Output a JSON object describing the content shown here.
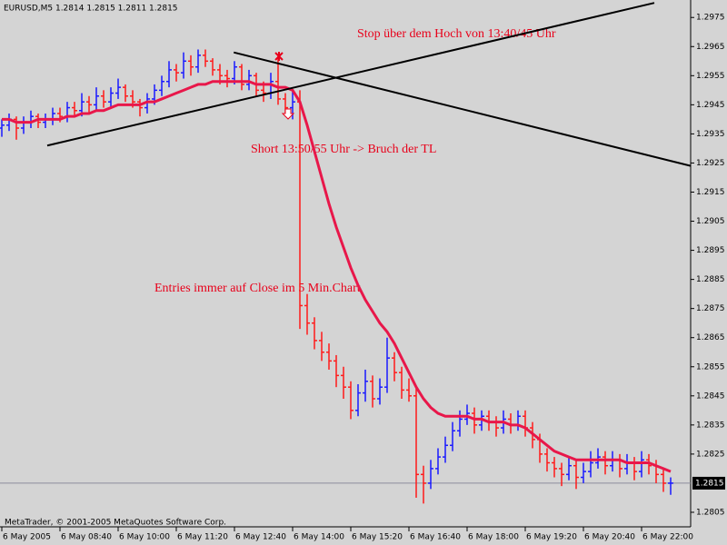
{
  "chart_data": {
    "type": "ohlc",
    "title": "EURUSD,M5  1.2814 1.2815 1.2811 1.2815",
    "footer": "MetaTrader, © 2001-2005 MetaQuotes Software Corp.",
    "annotations": [
      "Stop über dem Hoch von 13:40/45 Uhr",
      "Short 13:50/55 Uhr -> Bruch der TL",
      "Entries immer auf Close im 5 Min.Chart"
    ],
    "categories": [
      "6 May 2005",
      null,
      null,
      null,
      null,
      null,
      null,
      null,
      "6 May 08:40",
      null,
      null,
      null,
      null,
      null,
      null,
      null,
      "6 May 10:00",
      null,
      null,
      null,
      null,
      null,
      null,
      null,
      "6 May 11:20",
      null,
      null,
      null,
      null,
      null,
      null,
      null,
      "6 May 12:40",
      null,
      null,
      null,
      null,
      null,
      null,
      null,
      "6 May 14:00",
      null,
      null,
      null,
      null,
      null,
      null,
      null,
      "6 May 15:20",
      null,
      null,
      null,
      null,
      null,
      null,
      null,
      "6 May 16:40",
      null,
      null,
      null,
      null,
      null,
      null,
      null,
      "6 May 18:00",
      null,
      null,
      null,
      null,
      null,
      null,
      null,
      "6 May 19:20",
      null,
      null,
      null,
      null,
      null,
      null,
      null,
      "6 May 20:40",
      null,
      null,
      null,
      null,
      null,
      null,
      null,
      "6 May 22:00",
      null,
      null,
      null,
      null
    ],
    "ohlc": [
      [
        1.2937,
        1.294,
        1.2934,
        1.2938
      ],
      [
        1.2938,
        1.2942,
        1.2936,
        1.294
      ],
      [
        1.294,
        1.2941,
        1.2933,
        1.2937
      ],
      [
        1.2937,
        1.2941,
        1.2935,
        1.2939
      ],
      [
        1.2939,
        1.2943,
        1.2937,
        1.2941
      ],
      [
        1.2941,
        1.2942,
        1.2937,
        1.2939
      ],
      [
        1.2939,
        1.2942,
        1.2937,
        1.294
      ],
      [
        1.294,
        1.2944,
        1.2938,
        1.2942
      ],
      [
        1.2942,
        1.2944,
        1.2939,
        1.2941
      ],
      [
        1.2941,
        1.2946,
        1.2939,
        1.2944
      ],
      [
        1.2944,
        1.2946,
        1.2941,
        1.2943
      ],
      [
        1.2943,
        1.2949,
        1.2941,
        1.2946
      ],
      [
        1.2946,
        1.2948,
        1.2942,
        1.2945
      ],
      [
        1.2945,
        1.2951,
        1.2943,
        1.2948
      ],
      [
        1.2948,
        1.295,
        1.2944,
        1.2946
      ],
      [
        1.2946,
        1.2951,
        1.2944,
        1.2949
      ],
      [
        1.2949,
        1.2954,
        1.2947,
        1.2951
      ],
      [
        1.2951,
        1.2952,
        1.2946,
        1.2948
      ],
      [
        1.2948,
        1.295,
        1.2944,
        1.2946
      ],
      [
        1.2946,
        1.2947,
        1.2941,
        1.2944
      ],
      [
        1.2944,
        1.2949,
        1.2942,
        1.2947
      ],
      [
        1.2947,
        1.2952,
        1.2945,
        1.295
      ],
      [
        1.295,
        1.2955,
        1.2948,
        1.2953
      ],
      [
        1.2953,
        1.296,
        1.2951,
        1.2957
      ],
      [
        1.2957,
        1.2959,
        1.2953,
        1.2956
      ],
      [
        1.2956,
        1.2963,
        1.2954,
        1.296
      ],
      [
        1.296,
        1.2962,
        1.2955,
        1.2958
      ],
      [
        1.2958,
        1.2964,
        1.2956,
        1.2962
      ],
      [
        1.2962,
        1.2964,
        1.2958,
        1.296
      ],
      [
        1.296,
        1.2961,
        1.2955,
        1.2957
      ],
      [
        1.2957,
        1.2959,
        1.2952,
        1.2955
      ],
      [
        1.2955,
        1.2957,
        1.2951,
        1.2954
      ],
      [
        1.2954,
        1.296,
        1.2952,
        1.2958
      ],
      [
        1.2958,
        1.2959,
        1.295,
        1.2952
      ],
      [
        1.2952,
        1.2957,
        1.295,
        1.2955
      ],
      [
        1.2955,
        1.2956,
        1.2948,
        1.295
      ],
      [
        1.295,
        1.2953,
        1.2946,
        1.2949
      ],
      [
        1.2949,
        1.2956,
        1.2947,
        1.2953
      ],
      [
        1.2953,
        1.2962,
        1.2945,
        1.2947
      ],
      [
        1.2947,
        1.2949,
        1.2941,
        1.2944
      ],
      [
        1.2944,
        1.295,
        1.294,
        1.2946
      ],
      [
        1.2946,
        1.295,
        1.2868,
        1.2876
      ],
      [
        1.2876,
        1.288,
        1.2866,
        1.287
      ],
      [
        1.287,
        1.2872,
        1.2861,
        1.2864
      ],
      [
        1.2864,
        1.2867,
        1.2857,
        1.286
      ],
      [
        1.286,
        1.2863,
        1.2854,
        1.2857
      ],
      [
        1.2857,
        1.2859,
        1.2848,
        1.2852
      ],
      [
        1.2852,
        1.2855,
        1.2844,
        1.2848
      ],
      [
        1.2848,
        1.285,
        1.2837,
        1.284
      ],
      [
        1.284,
        1.2849,
        1.2838,
        1.2846
      ],
      [
        1.2846,
        1.2854,
        1.2843,
        1.285
      ],
      [
        1.285,
        1.2852,
        1.2841,
        1.2844
      ],
      [
        1.2844,
        1.2851,
        1.2842,
        1.2848
      ],
      [
        1.2848,
        1.2865,
        1.2846,
        1.2858
      ],
      [
        1.2858,
        1.286,
        1.285,
        1.2853
      ],
      [
        1.2853,
        1.2855,
        1.2844,
        1.2847
      ],
      [
        1.2847,
        1.2851,
        1.2843,
        1.2845
      ],
      [
        1.2845,
        1.2848,
        1.281,
        1.2818
      ],
      [
        1.2818,
        1.2821,
        1.2808,
        1.2815
      ],
      [
        1.2815,
        1.2823,
        1.2813,
        1.282
      ],
      [
        1.282,
        1.2827,
        1.2818,
        1.2824
      ],
      [
        1.2824,
        1.2831,
        1.2822,
        1.2828
      ],
      [
        1.2828,
        1.2836,
        1.2826,
        1.2833
      ],
      [
        1.2833,
        1.284,
        1.2831,
        1.2837
      ],
      [
        1.2837,
        1.2842,
        1.2835,
        1.2839
      ],
      [
        1.2839,
        1.2841,
        1.2832,
        1.2835
      ],
      [
        1.2835,
        1.284,
        1.2833,
        1.2838
      ],
      [
        1.2838,
        1.284,
        1.2833,
        1.2836
      ],
      [
        1.2836,
        1.2838,
        1.2831,
        1.2834
      ],
      [
        1.2834,
        1.284,
        1.2832,
        1.2837
      ],
      [
        1.2837,
        1.2839,
        1.2832,
        1.2835
      ],
      [
        1.2835,
        1.284,
        1.2833,
        1.2838
      ],
      [
        1.2838,
        1.284,
        1.2831,
        1.2834
      ],
      [
        1.2834,
        1.2836,
        1.2827,
        1.283
      ],
      [
        1.283,
        1.2832,
        1.2822,
        1.2825
      ],
      [
        1.2825,
        1.2827,
        1.2819,
        1.2822
      ],
      [
        1.2822,
        1.2824,
        1.2817,
        1.282
      ],
      [
        1.282,
        1.2822,
        1.2814,
        1.2818
      ],
      [
        1.2818,
        1.2824,
        1.2816,
        1.2821
      ],
      [
        1.2821,
        1.2823,
        1.2813,
        1.2817
      ],
      [
        1.2817,
        1.2822,
        1.2815,
        1.2819
      ],
      [
        1.2819,
        1.2826,
        1.2817,
        1.2822
      ],
      [
        1.2822,
        1.2827,
        1.282,
        1.2824
      ],
      [
        1.2824,
        1.2826,
        1.2818,
        1.2821
      ],
      [
        1.2821,
        1.2826,
        1.2819,
        1.2823
      ],
      [
        1.2823,
        1.2825,
        1.2817,
        1.282
      ],
      [
        1.282,
        1.2825,
        1.2818,
        1.2822
      ],
      [
        1.2822,
        1.2824,
        1.2816,
        1.2819
      ],
      [
        1.2819,
        1.2826,
        1.2817,
        1.2823
      ],
      [
        1.2823,
        1.2825,
        1.2818,
        1.2821
      ],
      [
        1.2821,
        1.2823,
        1.2815,
        1.2818
      ],
      [
        1.2818,
        1.282,
        1.2812,
        1.2815
      ],
      [
        1.2815,
        1.2817,
        1.2811,
        1.2815
      ]
    ],
    "up_color": "#1a1aff",
    "down_color": "#ff1a1a",
    "ma": {
      "color": "#e8174a",
      "values": [
        1.294,
        1.294,
        1.2939,
        1.2939,
        1.2939,
        1.294,
        1.294,
        1.294,
        1.294,
        1.2941,
        1.2941,
        1.2942,
        1.2942,
        1.2943,
        1.2943,
        1.2944,
        1.2945,
        1.2945,
        1.2945,
        1.2945,
        1.2946,
        1.2946,
        1.2947,
        1.2948,
        1.2949,
        1.295,
        1.2951,
        1.2952,
        1.2952,
        1.2953,
        1.2953,
        1.2953,
        1.2953,
        1.2953,
        1.2953,
        1.2952,
        1.2952,
        1.2952,
        1.2951,
        1.2951,
        1.295,
        1.2946,
        1.2938,
        1.2929,
        1.292,
        1.2911,
        1.2903,
        1.2896,
        1.2889,
        1.2883,
        1.2878,
        1.2874,
        1.287,
        1.2867,
        1.2863,
        1.2858,
        1.2853,
        1.2848,
        1.2844,
        1.2841,
        1.2839,
        1.2838,
        1.2838,
        1.2838,
        1.2838,
        1.2837,
        1.2837,
        1.2836,
        1.2836,
        1.2836,
        1.2835,
        1.2835,
        1.2834,
        1.2832,
        1.283,
        1.2828,
        1.2826,
        1.2825,
        1.2824,
        1.2823,
        1.2823,
        1.2823,
        1.2823,
        1.2823,
        1.2823,
        1.2823,
        1.2822,
        1.2822,
        1.2822,
        1.2822,
        1.2821,
        1.282,
        1.2819
      ]
    },
    "trendlines": [
      {
        "x": [
          6.25,
          89.75
        ],
        "y": [
          1.2931,
          1.298
        ]
      },
      {
        "x": [
          31.9,
          94.75
        ],
        "y": [
          1.2963,
          1.2924
        ]
      }
    ],
    "last_price": 1.2815,
    "ylim": [
      1.28,
      1.2981
    ],
    "yticks": [
      1.2975,
      1.2965,
      1.2955,
      1.2945,
      1.2935,
      1.2925,
      1.2915,
      1.2905,
      1.2895,
      1.2885,
      1.2875,
      1.2865,
      1.2855,
      1.2845,
      1.2835,
      1.2825,
      1.2805
    ],
    "grid": false
  }
}
